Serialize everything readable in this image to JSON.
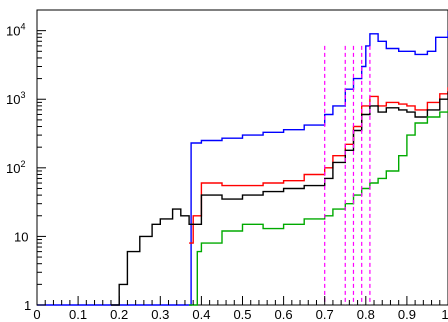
{
  "chart_data": {
    "type": "line",
    "title": "",
    "xlabel": "",
    "ylabel": "",
    "xlim": [
      0,
      1
    ],
    "ylim": [
      1,
      20000
    ],
    "yscale": "log",
    "grid": false,
    "x_ticks": [
      {
        "value": 0,
        "label": "0"
      },
      {
        "value": 0.1,
        "label": "0.1"
      },
      {
        "value": 0.2,
        "label": "0.2"
      },
      {
        "value": 0.3,
        "label": "0.3"
      },
      {
        "value": 0.4,
        "label": "0.4"
      },
      {
        "value": 0.5,
        "label": "0.5"
      },
      {
        "value": 0.6,
        "label": "0.6"
      },
      {
        "value": 0.7,
        "label": "0.7"
      },
      {
        "value": 0.8,
        "label": "0.8"
      },
      {
        "value": 0.9,
        "label": "0.9"
      },
      {
        "value": 1.0,
        "label": "1"
      }
    ],
    "y_ticks": [
      {
        "value": 1,
        "base": "1",
        "exp": ""
      },
      {
        "value": 10,
        "base": "10",
        "exp": ""
      },
      {
        "value": 100,
        "base": "10",
        "exp": "2"
      },
      {
        "value": 1000,
        "base": "10",
        "exp": "3"
      },
      {
        "value": 10000,
        "base": "10",
        "exp": "4"
      }
    ],
    "vertical_lines": {
      "color": "#ff00ff",
      "style": "dashed",
      "x": [
        0.7,
        0.75,
        0.77,
        0.79,
        0.81
      ]
    },
    "series": [
      {
        "color": "#0000ff",
        "points": [
          [
            0.0,
            1
          ],
          [
            0.37,
            1
          ],
          [
            0.375,
            230
          ],
          [
            0.4,
            250
          ],
          [
            0.45,
            270
          ],
          [
            0.5,
            300
          ],
          [
            0.55,
            330
          ],
          [
            0.6,
            360
          ],
          [
            0.65,
            420
          ],
          [
            0.7,
            600
          ],
          [
            0.72,
            800
          ],
          [
            0.75,
            1400
          ],
          [
            0.77,
            2000
          ],
          [
            0.79,
            3000
          ],
          [
            0.8,
            6000
          ],
          [
            0.81,
            9000
          ],
          [
            0.83,
            7000
          ],
          [
            0.85,
            5500
          ],
          [
            0.88,
            5000
          ],
          [
            0.9,
            5000
          ],
          [
            0.92,
            4500
          ],
          [
            0.95,
            5000
          ],
          [
            0.97,
            8000
          ],
          [
            1.0,
            10000
          ]
        ]
      },
      {
        "color": "#ff0000",
        "points": [
          [
            0.37,
            8
          ],
          [
            0.38,
            20
          ],
          [
            0.4,
            60
          ],
          [
            0.45,
            55
          ],
          [
            0.5,
            55
          ],
          [
            0.55,
            60
          ],
          [
            0.6,
            65
          ],
          [
            0.65,
            80
          ],
          [
            0.7,
            100
          ],
          [
            0.72,
            150
          ],
          [
            0.75,
            220
          ],
          [
            0.77,
            400
          ],
          [
            0.79,
            800
          ],
          [
            0.81,
            1100
          ],
          [
            0.83,
            800
          ],
          [
            0.85,
            900
          ],
          [
            0.88,
            850
          ],
          [
            0.9,
            800
          ],
          [
            0.92,
            700
          ],
          [
            0.95,
            900
          ],
          [
            0.98,
            1200
          ],
          [
            1.0,
            1500
          ]
        ]
      },
      {
        "color": "#000000",
        "points": [
          [
            0.18,
            1
          ],
          [
            0.2,
            2
          ],
          [
            0.22,
            6
          ],
          [
            0.25,
            10
          ],
          [
            0.28,
            15
          ],
          [
            0.3,
            18
          ],
          [
            0.33,
            25
          ],
          [
            0.35,
            20
          ],
          [
            0.37,
            15
          ],
          [
            0.4,
            40
          ],
          [
            0.45,
            35
          ],
          [
            0.5,
            40
          ],
          [
            0.55,
            45
          ],
          [
            0.6,
            50
          ],
          [
            0.65,
            55
          ],
          [
            0.7,
            70
          ],
          [
            0.72,
            120
          ],
          [
            0.75,
            180
          ],
          [
            0.77,
            350
          ],
          [
            0.79,
            600
          ],
          [
            0.81,
            800
          ],
          [
            0.83,
            650
          ],
          [
            0.85,
            750
          ],
          [
            0.88,
            700
          ],
          [
            0.9,
            650
          ],
          [
            0.92,
            550
          ],
          [
            0.95,
            700
          ],
          [
            0.98,
            1000
          ],
          [
            1.0,
            1300
          ]
        ]
      },
      {
        "color": "#00aa00",
        "points": [
          [
            0.37,
            1
          ],
          [
            0.39,
            6
          ],
          [
            0.4,
            8
          ],
          [
            0.45,
            12
          ],
          [
            0.5,
            15
          ],
          [
            0.55,
            13
          ],
          [
            0.6,
            15
          ],
          [
            0.65,
            18
          ],
          [
            0.7,
            20
          ],
          [
            0.72,
            25
          ],
          [
            0.75,
            30
          ],
          [
            0.77,
            40
          ],
          [
            0.79,
            50
          ],
          [
            0.81,
            60
          ],
          [
            0.83,
            70
          ],
          [
            0.85,
            90
          ],
          [
            0.88,
            150
          ],
          [
            0.9,
            300
          ],
          [
            0.92,
            450
          ],
          [
            0.95,
            550
          ],
          [
            0.98,
            650
          ],
          [
            1.0,
            700
          ]
        ]
      }
    ]
  }
}
